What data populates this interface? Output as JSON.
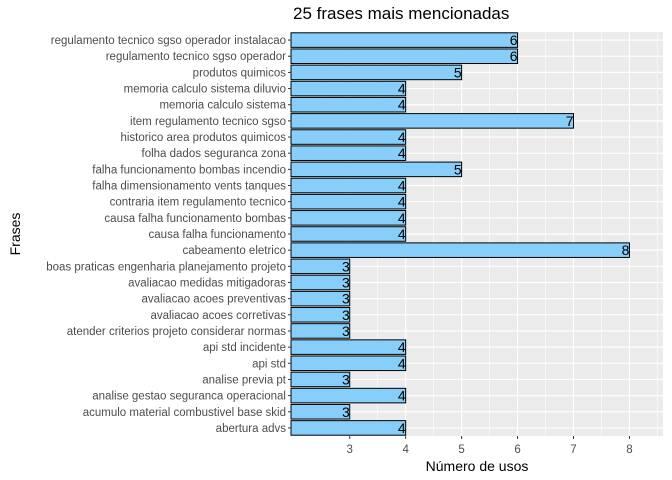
{
  "chart_data": {
    "type": "bar",
    "orientation": "horizontal",
    "title": "25 frases mais mencionadas",
    "xlabel": "Número de usos",
    "ylabel": "Frases",
    "xlim": [
      1.95,
      8.6
    ],
    "xticks": [
      3,
      4,
      5,
      6,
      7,
      8
    ],
    "grid": true,
    "legend": "none",
    "categories": [
      "regulamento tecnico sgso operador instalacao",
      "regulamento tecnico sgso operador",
      "produtos quimicos",
      "memoria calculo sistema diluvio",
      "memoria calculo sistema",
      "item  regulamento tecnico sgso",
      "historico area produtos quimicos",
      "folha dados seguranca zona",
      "falha funcionamento bombas incendio",
      "falha dimensionamento vents tanques",
      "contraria item  regulamento tecnico",
      "causa  falha funcionamento bombas",
      "causa  falha funcionamento",
      "cabeamento eletrico",
      "boas praticas engenharia planejamento projeto",
      "avaliacao medidas mitigadoras",
      "avaliacao acoes preventivas",
      "avaliacao acoes corretivas",
      "atender criterios projeto considerar normas",
      "api std  incidente",
      "api std",
      "analise previa pt",
      "analise gestao seguranca operacional",
      "acumulo material combustivel base skid",
      "abertura advs"
    ],
    "values": [
      6,
      6,
      5,
      4,
      4,
      7,
      4,
      4,
      5,
      4,
      4,
      4,
      4,
      8,
      3,
      3,
      3,
      3,
      3,
      4,
      4,
      3,
      4,
      3,
      4
    ],
    "colors": {
      "bar_fill": "#87CEFA",
      "bar_stroke": "#000000",
      "panel_bg": "#EBEBEB",
      "grid": "#FFFFFF"
    }
  }
}
